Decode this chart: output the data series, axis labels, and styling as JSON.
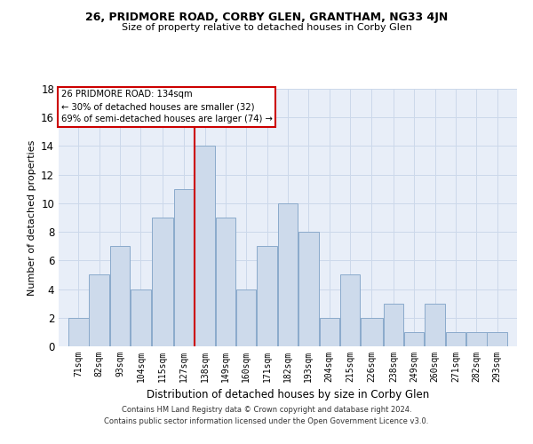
{
  "title": "26, PRIDMORE ROAD, CORBY GLEN, GRANTHAM, NG33 4JN",
  "subtitle": "Size of property relative to detached houses in Corby Glen",
  "xlabel": "Distribution of detached houses by size in Corby Glen",
  "ylabel": "Number of detached properties",
  "bar_labels": [
    "71sqm",
    "82sqm",
    "93sqm",
    "104sqm",
    "115sqm",
    "127sqm",
    "138sqm",
    "149sqm",
    "160sqm",
    "171sqm",
    "182sqm",
    "193sqm",
    "204sqm",
    "215sqm",
    "226sqm",
    "238sqm",
    "249sqm",
    "260sqm",
    "271sqm",
    "282sqm",
    "293sqm"
  ],
  "bar_values": [
    2,
    5,
    7,
    4,
    9,
    11,
    14,
    9,
    4,
    7,
    10,
    8,
    2,
    5,
    2,
    3,
    1,
    3,
    1,
    1,
    1
  ],
  "bar_color": "#cddaeb",
  "bar_edgecolor": "#8aaacb",
  "bin_edges": [
    71,
    82,
    93,
    104,
    115,
    127,
    138,
    149,
    160,
    171,
    182,
    193,
    204,
    215,
    226,
    238,
    249,
    260,
    271,
    282,
    293,
    304
  ],
  "annotation_text": "26 PRIDMORE ROAD: 134sqm\n← 30% of detached houses are smaller (32)\n69% of semi-detached houses are larger (74) →",
  "annotation_box_color": "#ffffff",
  "annotation_box_edgecolor": "#cc0000",
  "vline_color": "#cc0000",
  "ylim": [
    0,
    18
  ],
  "yticks": [
    0,
    2,
    4,
    6,
    8,
    10,
    12,
    14,
    16,
    18
  ],
  "grid_color": "#ccd8ea",
  "background_color": "#e8eef8",
  "footer": "Contains HM Land Registry data © Crown copyright and database right 2024.\nContains public sector information licensed under the Open Government Licence v3.0."
}
